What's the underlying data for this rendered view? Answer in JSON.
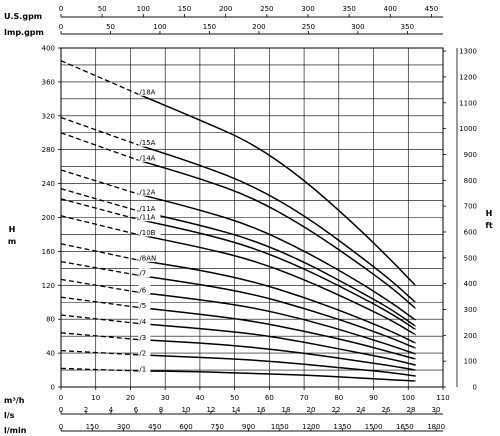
{
  "chart_data": {
    "type": "line",
    "top_axes": [
      {
        "label": "U.S.gpm",
        "ticks": [
          0,
          50,
          100,
          150,
          200,
          250,
          300,
          350,
          400,
          450
        ],
        "max": 464
      },
      {
        "label": "Imp.gpm",
        "ticks": [
          0,
          50,
          100,
          150,
          200,
          250,
          300,
          350,
          400
        ],
        "max": 386
      }
    ],
    "bottom_axes": [
      {
        "label": "m³/h",
        "ticks": [
          0,
          10,
          20,
          30,
          40,
          50,
          60,
          70,
          80,
          90,
          100,
          110
        ],
        "max": 110
      },
      {
        "label": "l/s",
        "ticks": [
          0,
          2,
          4,
          6,
          8,
          10,
          12,
          14,
          16,
          18,
          20,
          22,
          24,
          26,
          28,
          30
        ],
        "max": 30.56
      },
      {
        "label": "l/min",
        "ticks": [
          0,
          150,
          300,
          450,
          600,
          750,
          900,
          1050,
          1200,
          1350,
          1500,
          1650,
          1800
        ],
        "max": 1833
      }
    ],
    "left_axis": {
      "label": "H\nm",
      "ylim": [
        0,
        400
      ],
      "ticks": [
        0,
        40,
        80,
        120,
        160,
        200,
        240,
        280,
        320,
        360,
        400
      ]
    },
    "right_axis": {
      "label": "H\nft",
      "ylim": [
        0,
        1312
      ],
      "ticks": [
        0,
        100,
        200,
        300,
        400,
        500,
        600,
        700,
        800,
        900,
        1000,
        1100,
        1200,
        1300
      ]
    },
    "grid": true,
    "xlim": [
      0,
      110
    ],
    "series": [
      {
        "name": "/18A",
        "dashed": [
          [
            0,
            385
          ],
          [
            22,
            346
          ]
        ],
        "points": [
          [
            22,
            346
          ],
          [
            40,
            315
          ],
          [
            55,
            288
          ],
          [
            70,
            245
          ],
          [
            85,
            190
          ],
          [
            95,
            150
          ],
          [
            102,
            120
          ]
        ]
      },
      {
        "name": "/15A",
        "dashed": [
          [
            0,
            318
          ],
          [
            22,
            286
          ]
        ],
        "points": [
          [
            22,
            286
          ],
          [
            40,
            262
          ],
          [
            55,
            238
          ],
          [
            70,
            203
          ],
          [
            85,
            158
          ],
          [
            95,
            126
          ],
          [
            102,
            100
          ]
        ]
      },
      {
        "name": "/14A",
        "dashed": [
          [
            0,
            300
          ],
          [
            22,
            268
          ]
        ],
        "points": [
          [
            22,
            268
          ],
          [
            40,
            246
          ],
          [
            55,
            224
          ],
          [
            70,
            190
          ],
          [
            85,
            148
          ],
          [
            95,
            118
          ],
          [
            102,
            93
          ]
        ]
      },
      {
        "name": "/12A",
        "dashed": [
          [
            0,
            256
          ],
          [
            22,
            228
          ]
        ],
        "points": [
          [
            22,
            228
          ],
          [
            40,
            209
          ],
          [
            55,
            190
          ],
          [
            70,
            161
          ],
          [
            85,
            126
          ],
          [
            95,
            100
          ],
          [
            102,
            79
          ]
        ]
      },
      {
        "name": "/11A",
        "dashed": [
          [
            0,
            234
          ],
          [
            22,
            208
          ]
        ],
        "points": [
          [
            22,
            208
          ],
          [
            40,
            191
          ],
          [
            55,
            174
          ],
          [
            70,
            148
          ],
          [
            85,
            115
          ],
          [
            95,
            92
          ],
          [
            102,
            72
          ]
        ]
      },
      {
        "name": "/11A",
        "dashed": [
          [
            0,
            222
          ],
          [
            22,
            198
          ]
        ],
        "points": [
          [
            22,
            198
          ],
          [
            40,
            182
          ],
          [
            55,
            165
          ],
          [
            70,
            140
          ],
          [
            85,
            109
          ],
          [
            95,
            87
          ],
          [
            102,
            68
          ]
        ]
      },
      {
        "name": "/10B",
        "dashed": [
          [
            0,
            202
          ],
          [
            22,
            180
          ]
        ],
        "points": [
          [
            22,
            180
          ],
          [
            40,
            165
          ],
          [
            55,
            150
          ],
          [
            70,
            127
          ],
          [
            85,
            99
          ],
          [
            95,
            79
          ],
          [
            102,
            62
          ]
        ]
      },
      {
        "name": "/8AN",
        "dashed": [
          [
            0,
            169
          ],
          [
            22,
            150
          ]
        ],
        "points": [
          [
            22,
            150
          ],
          [
            40,
            138
          ],
          [
            55,
            125
          ],
          [
            70,
            106
          ],
          [
            85,
            83
          ],
          [
            95,
            66
          ],
          [
            102,
            52
          ]
        ]
      },
      {
        "name": "/7",
        "dashed": [
          [
            0,
            148
          ],
          [
            22,
            132
          ]
        ],
        "points": [
          [
            22,
            132
          ],
          [
            40,
            121
          ],
          [
            55,
            110
          ],
          [
            70,
            93
          ],
          [
            85,
            73
          ],
          [
            95,
            58
          ],
          [
            102,
            46
          ]
        ]
      },
      {
        "name": "/6",
        "dashed": [
          [
            0,
            127
          ],
          [
            22,
            112
          ]
        ],
        "points": [
          [
            22,
            112
          ],
          [
            40,
            103
          ],
          [
            55,
            94
          ],
          [
            70,
            80
          ],
          [
            85,
            62
          ],
          [
            95,
            49
          ],
          [
            102,
            39
          ]
        ]
      },
      {
        "name": "/5",
        "dashed": [
          [
            0,
            106
          ],
          [
            22,
            94
          ]
        ],
        "points": [
          [
            22,
            94
          ],
          [
            40,
            86
          ],
          [
            55,
            78
          ],
          [
            70,
            66
          ],
          [
            85,
            52
          ],
          [
            95,
            41
          ],
          [
            102,
            33
          ]
        ]
      },
      {
        "name": "/4",
        "dashed": [
          [
            0,
            85
          ],
          [
            22,
            75
          ]
        ],
        "points": [
          [
            22,
            75
          ],
          [
            40,
            69
          ],
          [
            55,
            63
          ],
          [
            70,
            53
          ],
          [
            85,
            41
          ],
          [
            95,
            33
          ],
          [
            102,
            26
          ]
        ]
      },
      {
        "name": "/3",
        "dashed": [
          [
            0,
            64
          ],
          [
            22,
            56
          ]
        ],
        "points": [
          [
            22,
            56
          ],
          [
            40,
            52
          ],
          [
            55,
            47
          ],
          [
            70,
            40
          ],
          [
            85,
            31
          ],
          [
            95,
            25
          ],
          [
            102,
            20
          ]
        ]
      },
      {
        "name": "/2",
        "dashed": [
          [
            0,
            43
          ],
          [
            22,
            38
          ]
        ],
        "points": [
          [
            22,
            38
          ],
          [
            40,
            35
          ],
          [
            55,
            32
          ],
          [
            70,
            27
          ],
          [
            85,
            21
          ],
          [
            95,
            17
          ],
          [
            102,
            13
          ]
        ]
      },
      {
        "name": "/1",
        "dashed": [
          [
            0,
            22
          ],
          [
            22,
            19
          ]
        ],
        "points": [
          [
            22,
            19
          ],
          [
            40,
            18
          ],
          [
            55,
            16
          ],
          [
            70,
            14
          ],
          [
            85,
            11
          ],
          [
            95,
            8.5
          ],
          [
            102,
            7
          ]
        ]
      }
    ]
  }
}
